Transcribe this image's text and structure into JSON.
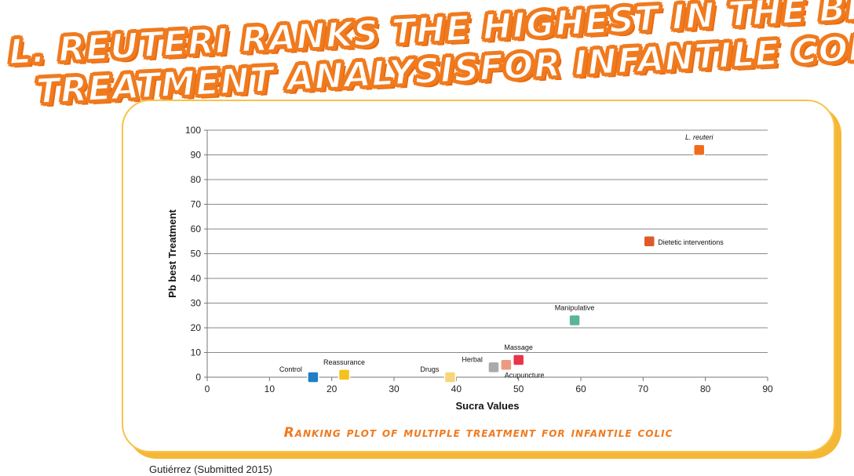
{
  "headline": {
    "line1": "L. REUTERI RANKS THE HIGHEST IN THE BEST",
    "line2": "TREATMENT ANALYSISFOR INFANTILE COLIC"
  },
  "caption": "Ranking plot of multiple treatment for infantile colic",
  "footer": "Gutiérrez (Submitted 2015)",
  "colors": {
    "headline": "#f07a1e",
    "frame": "#f7c44a",
    "caption": "#f07a1e"
  },
  "chart_data": {
    "type": "scatter",
    "xlabel": "Sucra Values",
    "ylabel": "Pb best Treatment",
    "xlim": [
      0,
      90
    ],
    "ylim": [
      0,
      100
    ],
    "xticks": [
      0,
      10,
      20,
      30,
      40,
      50,
      60,
      70,
      80,
      90
    ],
    "yticks": [
      0,
      10,
      20,
      30,
      40,
      50,
      60,
      70,
      80,
      90,
      100
    ],
    "grid": "horizontal",
    "points": [
      {
        "label": "Control",
        "x": 17,
        "y": 0,
        "color": "#1f7fc5",
        "label_pos": "upper-left"
      },
      {
        "label": "Reassurance",
        "x": 22,
        "y": 1,
        "color": "#f5c11c",
        "label_pos": "above"
      },
      {
        "label": "Drugs",
        "x": 39,
        "y": 0,
        "color": "#f7d57a",
        "label_pos": "upper-left"
      },
      {
        "label": "Herbal",
        "x": 46,
        "y": 4,
        "color": "#aaaaaa",
        "label_pos": "upper-left"
      },
      {
        "label": "Acupuncture",
        "x": 48,
        "y": 5,
        "color": "#ee9a80",
        "label_pos": "below-right"
      },
      {
        "label": "Massage",
        "x": 50,
        "y": 7,
        "color": "#e8344a",
        "label_pos": "above"
      },
      {
        "label": "Manipulative",
        "x": 59,
        "y": 23,
        "color": "#5bb39c",
        "label_pos": "above"
      },
      {
        "label": "Dietetic interventions",
        "x": 71,
        "y": 55,
        "color": "#e05a28",
        "label_pos": "right"
      },
      {
        "label": "L. reuteri",
        "x": 79,
        "y": 92,
        "color": "#f26b1d",
        "label_pos": "above",
        "italic": true
      }
    ]
  }
}
